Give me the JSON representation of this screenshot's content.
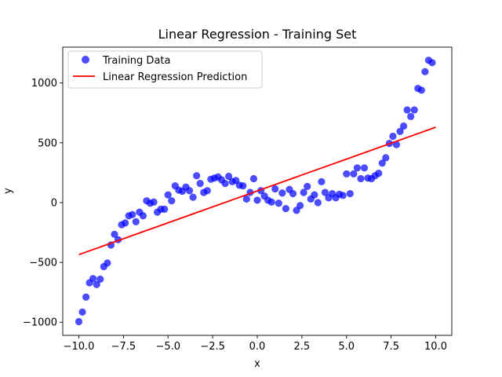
{
  "chart_data": {
    "type": "scatter",
    "title": "Linear Regression - Training Set",
    "xlabel": "x",
    "ylabel": "y",
    "xlim": [
      -10.9,
      10.9
    ],
    "ylim": [
      -1110,
      1300
    ],
    "xticks": [
      -10.0,
      -7.5,
      -5.0,
      -2.5,
      0.0,
      2.5,
      5.0,
      7.5,
      10.0
    ],
    "xtick_labels": [
      "−10.0",
      "−7.5",
      "−5.0",
      "−2.5",
      "0.0",
      "2.5",
      "5.0",
      "7.5",
      "10.0"
    ],
    "yticks": [
      -1000,
      -500,
      0,
      500,
      1000
    ],
    "ytick_labels": [
      "−1000",
      "−500",
      "0",
      "500",
      "1000"
    ],
    "grid": false,
    "legend_position": "top-left",
    "series": [
      {
        "name": "Training Data",
        "kind": "scatter",
        "color": "#0000ff",
        "alpha": 0.7,
        "points": [
          [
            -10.0,
            -995
          ],
          [
            -9.8,
            -915
          ],
          [
            -9.6,
            -790
          ],
          [
            -9.4,
            -670
          ],
          [
            -9.2,
            -635
          ],
          [
            -9.0,
            -685
          ],
          [
            -8.8,
            -640
          ],
          [
            -8.6,
            -535
          ],
          [
            -8.4,
            -505
          ],
          [
            -8.2,
            -355
          ],
          [
            -8.0,
            -265
          ],
          [
            -7.8,
            -310
          ],
          [
            -7.6,
            -185
          ],
          [
            -7.4,
            -170
          ],
          [
            -7.2,
            -110
          ],
          [
            -7.0,
            -100
          ],
          [
            -6.8,
            -160
          ],
          [
            -6.6,
            -80
          ],
          [
            -6.4,
            -110
          ],
          [
            -6.2,
            15
          ],
          [
            -6.0,
            -5
          ],
          [
            -5.8,
            5
          ],
          [
            -5.6,
            -80
          ],
          [
            -5.4,
            -55
          ],
          [
            -5.2,
            -55
          ],
          [
            -5.0,
            65
          ],
          [
            -4.8,
            15
          ],
          [
            -4.6,
            140
          ],
          [
            -4.4,
            105
          ],
          [
            -4.2,
            95
          ],
          [
            -4.0,
            130
          ],
          [
            -3.8,
            100
          ],
          [
            -3.6,
            45
          ],
          [
            -3.4,
            225
          ],
          [
            -3.2,
            160
          ],
          [
            -3.0,
            85
          ],
          [
            -2.8,
            100
          ],
          [
            -2.6,
            195
          ],
          [
            -2.4,
            205
          ],
          [
            -2.2,
            215
          ],
          [
            -2.0,
            190
          ],
          [
            -1.8,
            160
          ],
          [
            -1.6,
            220
          ],
          [
            -1.4,
            175
          ],
          [
            -1.2,
            185
          ],
          [
            -1.0,
            145
          ],
          [
            -0.8,
            140
          ],
          [
            -0.6,
            30
          ],
          [
            -0.4,
            85
          ],
          [
            -0.2,
            200
          ],
          [
            0.0,
            20
          ],
          [
            0.2,
            100
          ],
          [
            0.4,
            55
          ],
          [
            0.6,
            20
          ],
          [
            0.8,
            5
          ],
          [
            1.0,
            115
          ],
          [
            1.2,
            -5
          ],
          [
            1.4,
            80
          ],
          [
            1.6,
            -50
          ],
          [
            1.8,
            110
          ],
          [
            2.0,
            75
          ],
          [
            2.2,
            -65
          ],
          [
            2.4,
            -25
          ],
          [
            2.6,
            85
          ],
          [
            2.8,
            135
          ],
          [
            3.0,
            30
          ],
          [
            3.2,
            65
          ],
          [
            3.4,
            0
          ],
          [
            3.6,
            175
          ],
          [
            3.8,
            85
          ],
          [
            4.0,
            40
          ],
          [
            4.2,
            75
          ],
          [
            4.4,
            40
          ],
          [
            4.6,
            70
          ],
          [
            4.8,
            60
          ],
          [
            5.0,
            240
          ],
          [
            5.2,
            75
          ],
          [
            5.4,
            240
          ],
          [
            5.6,
            290
          ],
          [
            5.8,
            200
          ],
          [
            6.0,
            290
          ],
          [
            6.2,
            205
          ],
          [
            6.4,
            200
          ],
          [
            6.6,
            225
          ],
          [
            6.8,
            245
          ],
          [
            7.0,
            330
          ],
          [
            7.2,
            375
          ],
          [
            7.4,
            495
          ],
          [
            7.6,
            555
          ],
          [
            7.8,
            485
          ],
          [
            8.0,
            595
          ],
          [
            8.2,
            640
          ],
          [
            8.4,
            775
          ],
          [
            8.6,
            720
          ],
          [
            8.8,
            775
          ],
          [
            9.0,
            955
          ],
          [
            9.2,
            940
          ],
          [
            9.4,
            1095
          ],
          [
            9.6,
            1190
          ],
          [
            9.8,
            1170
          ]
        ]
      },
      {
        "name": "Linear Regression Prediction",
        "kind": "line",
        "color": "#ff0000",
        "points": [
          [
            -10.0,
            -435
          ],
          [
            10.0,
            630
          ]
        ]
      }
    ]
  }
}
